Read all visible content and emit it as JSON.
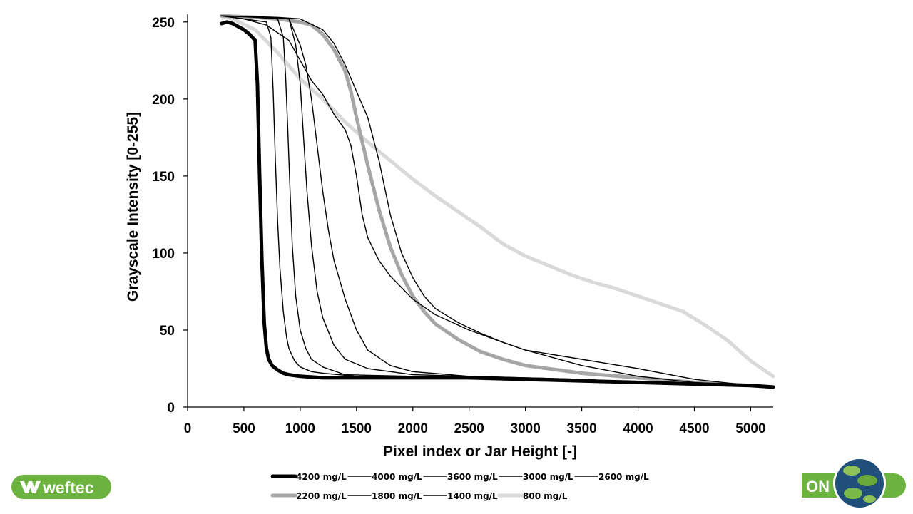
{
  "branding": {
    "left_logo_text": "weftec",
    "right_logo_text": "ON",
    "accent": "#6db33f"
  },
  "chart_data": {
    "type": "line",
    "title": "",
    "xlabel": "Pixel index or Jar Height [-]",
    "ylabel": "Grayscale Intensity [0-255]",
    "xlim": [
      0,
      5200
    ],
    "ylim": [
      0,
      255
    ],
    "xticks": [
      0,
      500,
      1000,
      1500,
      2000,
      2500,
      3000,
      3500,
      4000,
      4500,
      5000
    ],
    "yticks": [
      0,
      50,
      100,
      150,
      200,
      250
    ],
    "grid": false,
    "legend_position": "bottom",
    "series": [
      {
        "name": "4200 mg/L",
        "color": "#000000",
        "width": 5,
        "x": [
          300,
          350,
          400,
          450,
          500,
          550,
          600,
          620,
          640,
          660,
          680,
          700,
          720,
          750,
          800,
          850,
          900,
          1000,
          1200,
          1500,
          2000,
          2500,
          3000,
          3500,
          4000,
          4500,
          5000,
          5200
        ],
        "y": [
          249,
          250,
          249,
          247,
          245,
          242,
          238,
          210,
          150,
          95,
          55,
          38,
          31,
          27,
          24,
          22,
          21,
          20,
          19,
          19,
          19,
          19,
          18,
          17,
          16,
          15,
          14,
          13
        ]
      },
      {
        "name": "4000 mg/L",
        "color": "#000000",
        "width": 1.4,
        "x": [
          300,
          500,
          700,
          740,
          760,
          780,
          800,
          820,
          850,
          880,
          900,
          950,
          1000,
          1100,
          1200,
          1500,
          2000,
          2500,
          3000,
          3500,
          4000,
          4500,
          5000,
          5200
        ],
        "y": [
          254,
          252,
          250,
          240,
          205,
          160,
          120,
          90,
          62,
          45,
          38,
          30,
          26,
          23,
          22,
          20,
          20,
          19,
          18,
          17,
          16,
          15,
          14,
          13
        ]
      },
      {
        "name": "3600 mg/L",
        "color": "#000000",
        "width": 1.4,
        "x": [
          300,
          600,
          800,
          850,
          870,
          890,
          910,
          930,
          960,
          1000,
          1050,
          1100,
          1200,
          1400,
          2000,
          2500,
          3000,
          3500,
          4000,
          4500,
          5000,
          5200
        ],
        "y": [
          254,
          253,
          252,
          240,
          215,
          180,
          140,
          105,
          72,
          50,
          38,
          31,
          26,
          21,
          20,
          19,
          18,
          17,
          16,
          15,
          14,
          13
        ]
      },
      {
        "name": "3000 mg/L",
        "color": "#000000",
        "width": 1.4,
        "x": [
          300,
          700,
          900,
          960,
          1000,
          1030,
          1060,
          1100,
          1150,
          1200,
          1300,
          1400,
          1600,
          2000,
          2500,
          3000,
          3500,
          4000,
          4500,
          5000,
          5200
        ],
        "y": [
          254,
          253,
          252,
          235,
          210,
          175,
          140,
          105,
          75,
          58,
          40,
          31,
          25,
          21,
          20,
          19,
          18,
          16,
          15,
          14,
          13
        ]
      },
      {
        "name": "2600 mg/L",
        "color": "#000000",
        "width": 1.4,
        "x": [
          300,
          700,
          900,
          1000,
          1050,
          1100,
          1150,
          1200,
          1250,
          1300,
          1400,
          1500,
          1600,
          1800,
          2000,
          2500,
          3000,
          3500,
          4000,
          4500,
          5000,
          5200
        ],
        "y": [
          254,
          253,
          252,
          235,
          222,
          200,
          170,
          140,
          115,
          95,
          70,
          50,
          37,
          27,
          23,
          20,
          19,
          18,
          16,
          15,
          14,
          13
        ]
      },
      {
        "name": "2200 mg/L",
        "color": "#a6a6a6",
        "width": 5,
        "x": [
          300,
          600,
          800,
          1000,
          1100,
          1200,
          1300,
          1400,
          1450,
          1500,
          1600,
          1700,
          1800,
          1900,
          2000,
          2100,
          2200,
          2400,
          2600,
          2800,
          3000,
          3500,
          4000,
          4500,
          5000,
          5200
        ],
        "y": [
          254,
          253,
          252,
          250,
          248,
          242,
          232,
          218,
          205,
          188,
          157,
          128,
          104,
          86,
          72,
          62,
          54,
          44,
          36,
          31,
          27,
          22,
          19,
          16,
          14,
          13
        ]
      },
      {
        "name": "1800 mg/L",
        "color": "#000000",
        "width": 1.4,
        "x": [
          300,
          800,
          1000,
          1200,
          1300,
          1400,
          1500,
          1600,
          1700,
          1800,
          1900,
          2000,
          2100,
          2200,
          2400,
          2600,
          2800,
          3000,
          3500,
          4000,
          4500,
          5000,
          5200
        ],
        "y": [
          254,
          253,
          252,
          245,
          236,
          222,
          205,
          188,
          160,
          125,
          100,
          84,
          72,
          64,
          55,
          48,
          42,
          37,
          27,
          20,
          16,
          14,
          13
        ]
      },
      {
        "name": "1400 mg/L",
        "color": "#000000",
        "width": 1.4,
        "x": [
          300,
          500,
          700,
          900,
          1000,
          1100,
          1200,
          1300,
          1400,
          1450,
          1500,
          1550,
          1600,
          1700,
          1800,
          2000,
          2200,
          2500,
          2800,
          3000,
          3500,
          4000,
          4500,
          5000,
          5200
        ],
        "y": [
          254,
          252,
          248,
          238,
          225,
          212,
          203,
          190,
          180,
          170,
          150,
          125,
          110,
          95,
          85,
          70,
          60,
          50,
          42,
          37,
          31,
          25,
          18,
          14,
          13
        ]
      },
      {
        "name": "800 mg/L",
        "color": "#d9d9d9",
        "width": 5,
        "x": [
          300,
          400,
          600,
          800,
          1000,
          1200,
          1400,
          1600,
          1800,
          2000,
          2200,
          2400,
          2600,
          2800,
          3000,
          3200,
          3400,
          3600,
          3800,
          4000,
          4200,
          4400,
          4600,
          4800,
          5000,
          5200
        ],
        "y": [
          254,
          252,
          245,
          230,
          213,
          200,
          185,
          172,
          160,
          148,
          137,
          127,
          117,
          106,
          98,
          92,
          86,
          81,
          77,
          72,
          67,
          62,
          53,
          43,
          30,
          20
        ]
      }
    ]
  }
}
